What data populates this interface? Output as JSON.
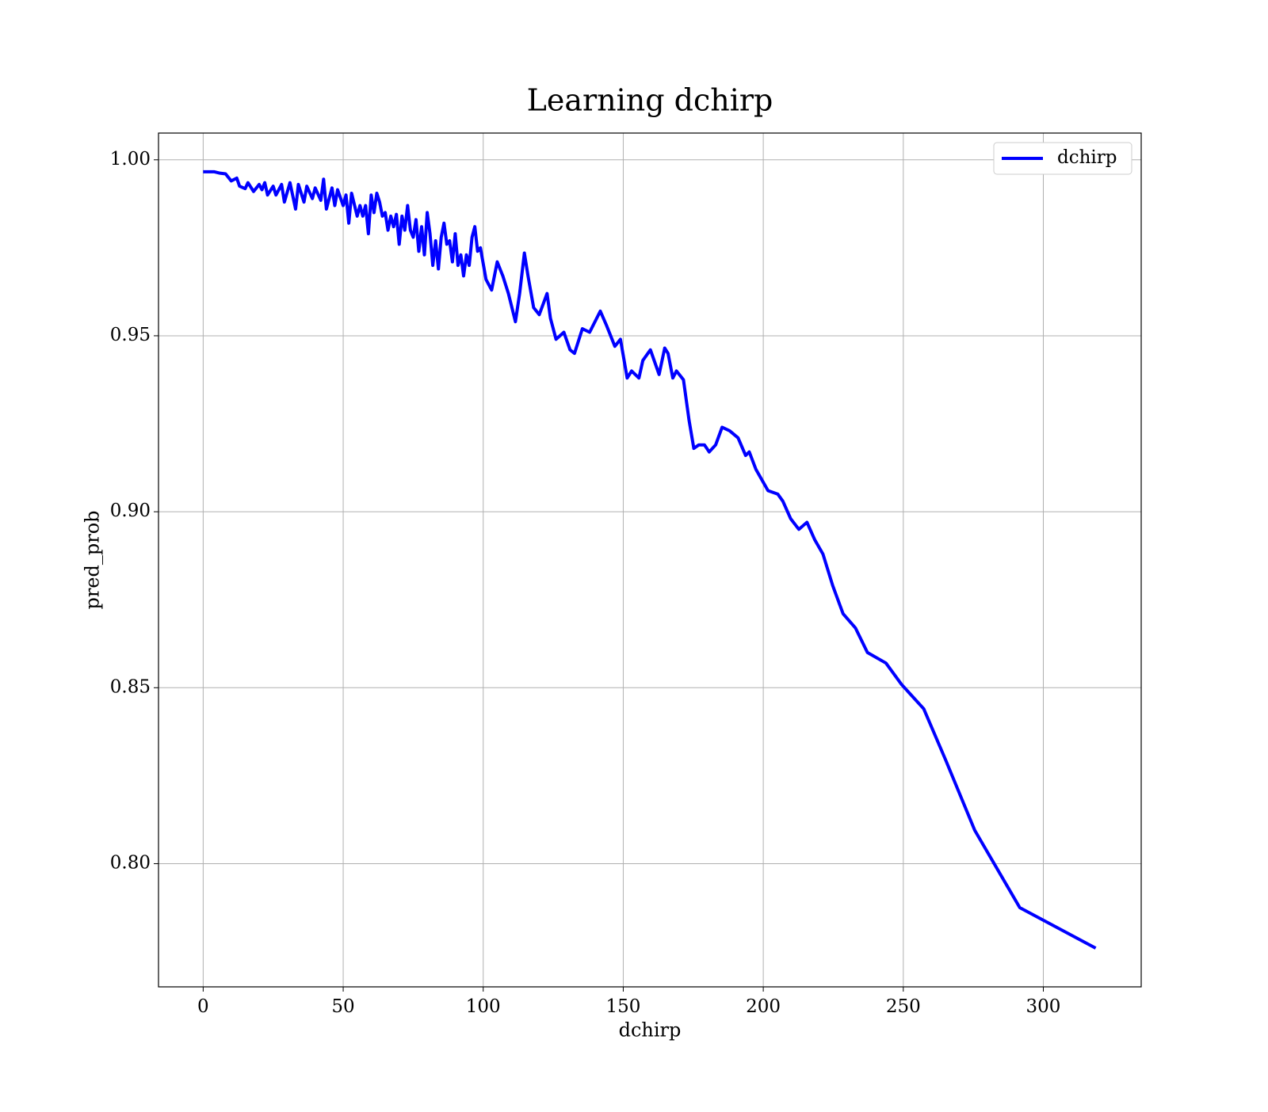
{
  "chart_data": {
    "type": "line",
    "title": "Learning dchirp",
    "xlabel": "dchirp",
    "ylabel": "pred_prob",
    "x": [
      0,
      2,
      4,
      6,
      8,
      10,
      12,
      13,
      15,
      16,
      18,
      20,
      21,
      22,
      23,
      25,
      26,
      28,
      29,
      31,
      33,
      34,
      36,
      37,
      39,
      40,
      42,
      43,
      44,
      46,
      47,
      48,
      50,
      51,
      52,
      53,
      55,
      56,
      57,
      58,
      59,
      60,
      61,
      62,
      63,
      64,
      65,
      66,
      67,
      68,
      69,
      70,
      71,
      72,
      73,
      74,
      75,
      76,
      77,
      78,
      79,
      80,
      81,
      82,
      83,
      84,
      85,
      86,
      87,
      88,
      89,
      90,
      91,
      92,
      93,
      94,
      95,
      96,
      97,
      98,
      99,
      101,
      103,
      105,
      107,
      109,
      111.5,
      113,
      114.7,
      116,
      118,
      120,
      122.8,
      124,
      126,
      128.8,
      131,
      132.6,
      135.4,
      138,
      141.8,
      144,
      147,
      149,
      151.4,
      153,
      155.6,
      157,
      159.7,
      162.8,
      164.8,
      166,
      167.7,
      169,
      171.5,
      173.5,
      175.2,
      177,
      179,
      180.7,
      183,
      185.3,
      188,
      191,
      193.7,
      195,
      197.4,
      201.7,
      205.2,
      207,
      209.8,
      212.7,
      215.6,
      218.4,
      221.3,
      224.8,
      228.5,
      232.9,
      237.2,
      243.8,
      249.3,
      257.3,
      265.1,
      275.5,
      291.6,
      318.7
    ],
    "series": [
      {
        "name": "dchirp",
        "color": "#0000ff",
        "values": [
          0.9966,
          0.9966,
          0.9966,
          0.9962,
          0.996,
          0.994,
          0.9948,
          0.9925,
          0.9918,
          0.9935,
          0.991,
          0.993,
          0.9915,
          0.9935,
          0.99,
          0.9925,
          0.99,
          0.993,
          0.988,
          0.9935,
          0.986,
          0.993,
          0.988,
          0.9925,
          0.989,
          0.992,
          0.9885,
          0.9945,
          0.986,
          0.992,
          0.987,
          0.9915,
          0.987,
          0.99,
          0.982,
          0.9905,
          0.984,
          0.987,
          0.984,
          0.987,
          0.979,
          0.99,
          0.985,
          0.9905,
          0.988,
          0.984,
          0.985,
          0.98,
          0.984,
          0.981,
          0.9845,
          0.976,
          0.984,
          0.98,
          0.987,
          0.98,
          0.978,
          0.983,
          0.974,
          0.981,
          0.973,
          0.985,
          0.979,
          0.97,
          0.977,
          0.969,
          0.978,
          0.982,
          0.976,
          0.977,
          0.971,
          0.979,
          0.97,
          0.973,
          0.967,
          0.973,
          0.97,
          0.978,
          0.981,
          0.974,
          0.975,
          0.966,
          0.963,
          0.971,
          0.967,
          0.962,
          0.954,
          0.962,
          0.9735,
          0.967,
          0.958,
          0.956,
          0.962,
          0.955,
          0.949,
          0.951,
          0.946,
          0.945,
          0.952,
          0.951,
          0.957,
          0.953,
          0.947,
          0.949,
          0.938,
          0.94,
          0.938,
          0.943,
          0.946,
          0.939,
          0.9465,
          0.945,
          0.938,
          0.94,
          0.9375,
          0.926,
          0.918,
          0.919,
          0.919,
          0.917,
          0.919,
          0.924,
          0.923,
          0.921,
          0.916,
          0.917,
          0.912,
          0.906,
          0.905,
          0.903,
          0.898,
          0.895,
          0.897,
          0.892,
          0.888,
          0.879,
          0.871,
          0.867,
          0.86,
          0.857,
          0.851,
          0.844,
          0.8295,
          0.8095,
          0.7875,
          0.776
        ]
      }
    ],
    "xlim": [
      -15.95,
      334.95
    ],
    "ylim": [
      0.765,
      1.0076
    ],
    "xticks": [
      0,
      50,
      100,
      150,
      200,
      250,
      300
    ],
    "yticks": [
      {
        "value": 0.8,
        "label": "0.80"
      },
      {
        "value": 0.85,
        "label": "0.85"
      },
      {
        "value": 0.9,
        "label": "0.90"
      },
      {
        "value": 0.95,
        "label": "0.95"
      },
      {
        "value": 1.0,
        "label": "1.00"
      }
    ],
    "grid": true,
    "legend": "upper right"
  }
}
